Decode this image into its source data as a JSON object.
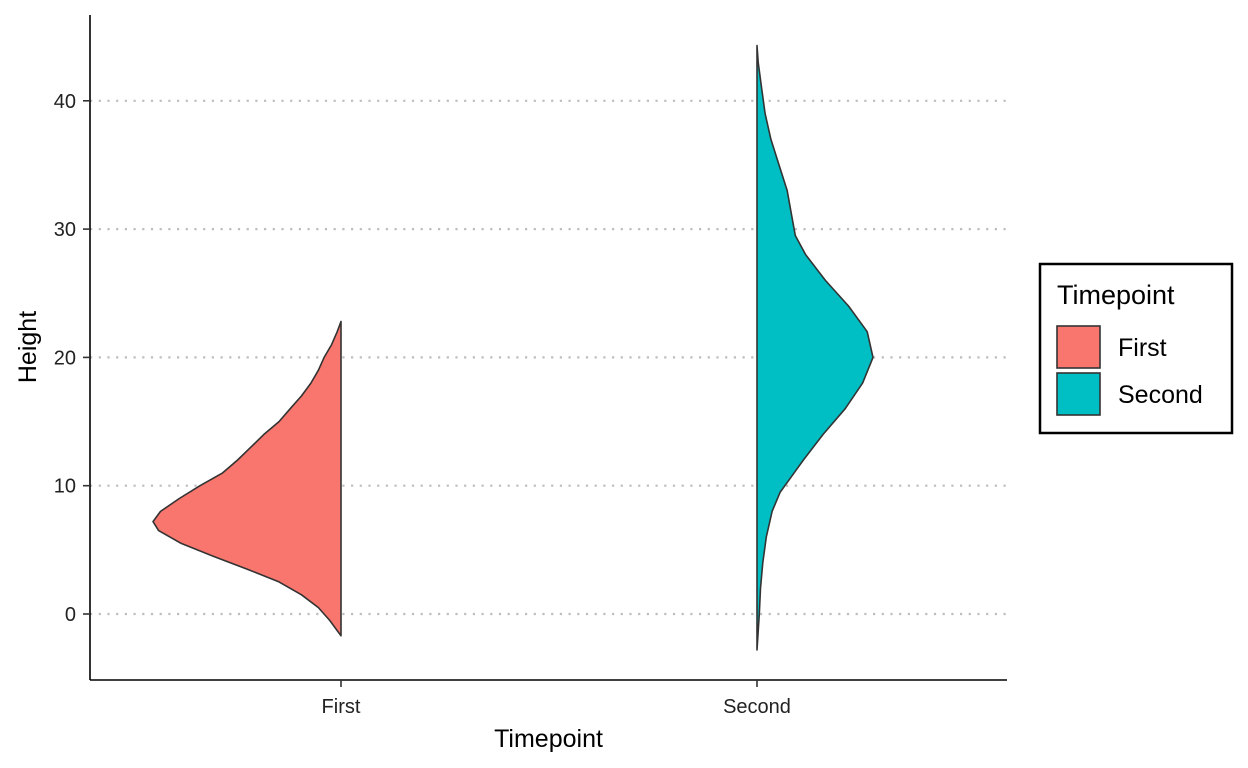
{
  "chart_data": {
    "type": "violin",
    "subtype": "half-violin",
    "xlabel": "Timepoint",
    "ylabel": "Height",
    "categories": [
      "First",
      "Second"
    ],
    "ylim": [
      -5,
      44.6
    ],
    "yticks": [
      0,
      10,
      20,
      30,
      40
    ],
    "grid": {
      "x": false,
      "y": "dotted"
    },
    "legend": {
      "title": "Timepoint",
      "position": "right",
      "entries": [
        "First",
        "Second"
      ]
    },
    "series": [
      {
        "name": "First",
        "side": "left",
        "color": "#F8766D",
        "min": -1.7,
        "max": 22.8,
        "peak": 7.2,
        "density_profile": [
          [
            -1.7,
            0.0
          ],
          [
            -0.5,
            0.06
          ],
          [
            0.5,
            0.12
          ],
          [
            1.5,
            0.21
          ],
          [
            2.5,
            0.33
          ],
          [
            3.5,
            0.5
          ],
          [
            4.5,
            0.68
          ],
          [
            5.5,
            0.85
          ],
          [
            6.5,
            0.97
          ],
          [
            7.2,
            1.0
          ],
          [
            8.0,
            0.96
          ],
          [
            9.0,
            0.86
          ],
          [
            10.0,
            0.75
          ],
          [
            11.0,
            0.63
          ],
          [
            12.0,
            0.55
          ],
          [
            13.0,
            0.48
          ],
          [
            14.0,
            0.41
          ],
          [
            15.0,
            0.33
          ],
          [
            16.0,
            0.27
          ],
          [
            17.0,
            0.21
          ],
          [
            18.0,
            0.16
          ],
          [
            19.0,
            0.12
          ],
          [
            20.0,
            0.09
          ],
          [
            21.0,
            0.05
          ],
          [
            22.0,
            0.02
          ],
          [
            22.8,
            0.0
          ]
        ]
      },
      {
        "name": "Second",
        "side": "right",
        "color": "#00BFC4",
        "min": -2.8,
        "max": 44.3,
        "peak": 20.0,
        "density_profile": [
          [
            -2.8,
            0.0
          ],
          [
            0.0,
            0.02
          ],
          [
            2.0,
            0.03
          ],
          [
            4.0,
            0.05
          ],
          [
            6.0,
            0.08
          ],
          [
            8.0,
            0.13
          ],
          [
            9.5,
            0.2
          ],
          [
            10.5,
            0.28
          ],
          [
            12.0,
            0.4
          ],
          [
            14.0,
            0.57
          ],
          [
            16.0,
            0.76
          ],
          [
            18.0,
            0.91
          ],
          [
            20.0,
            1.0
          ],
          [
            22.0,
            0.95
          ],
          [
            24.0,
            0.79
          ],
          [
            26.0,
            0.59
          ],
          [
            28.0,
            0.42
          ],
          [
            29.5,
            0.33
          ],
          [
            31.0,
            0.3
          ],
          [
            33.0,
            0.26
          ],
          [
            35.0,
            0.19
          ],
          [
            37.0,
            0.12
          ],
          [
            39.0,
            0.07
          ],
          [
            41.0,
            0.04
          ],
          [
            43.0,
            0.01
          ],
          [
            44.3,
            0.0
          ]
        ]
      }
    ]
  }
}
